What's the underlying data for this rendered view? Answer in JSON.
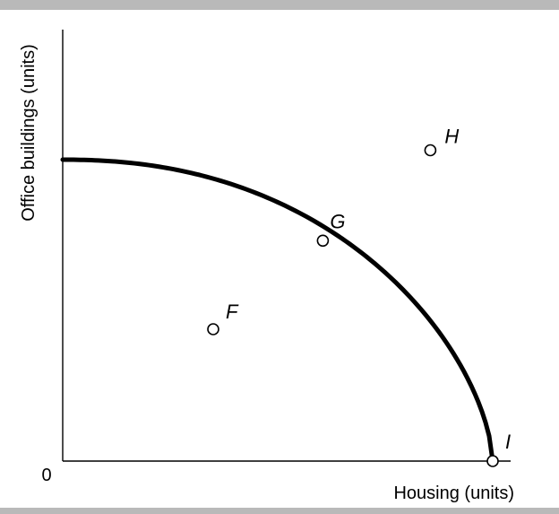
{
  "chart_data": {
    "type": "line",
    "title": "",
    "xlabel": "Housing (units)",
    "ylabel": "Office buildings (units)",
    "origin_label": "0",
    "xlim": [
      0,
      100
    ],
    "ylim": [
      0,
      100
    ],
    "grid": false,
    "ticks": false,
    "series": [
      {
        "x": [
          0,
          10,
          20,
          30,
          40,
          50,
          60,
          70,
          80,
          90,
          95,
          100
        ],
        "y": [
          80,
          79.5,
          77.9,
          75.3,
          71.6,
          66.7,
          60.4,
          52.5,
          43.3,
          30.0,
          19.8,
          0
        ]
      }
    ],
    "points": [
      {
        "label": "F",
        "x": 35,
        "y": 35
      },
      {
        "label": "G",
        "x": 60.5,
        "y": 58.5
      },
      {
        "label": "H",
        "x": 85.5,
        "y": 82.5
      },
      {
        "label": "I",
        "x": 100,
        "y": 0
      }
    ]
  }
}
